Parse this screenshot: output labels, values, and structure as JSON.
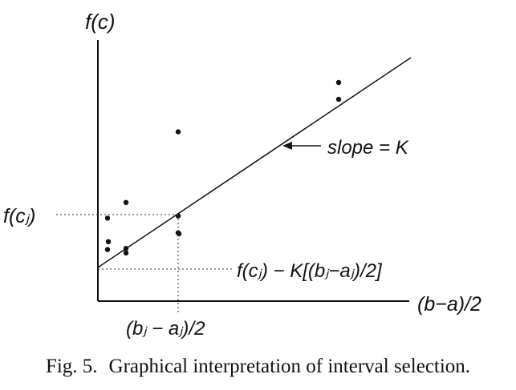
{
  "figure": {
    "y_label": "f(c)",
    "x_label": "(b−a)/2",
    "point_label_y": "f(cⱼ)",
    "intercept_label": "f(cⱼ) − K[(bⱼ−aⱼ)/2]",
    "point_label_x": "(bⱼ − aⱼ)/2",
    "slope_label": "slope = K",
    "dots": [
      {
        "col": 1,
        "level": 0.74
      },
      {
        "col": 1,
        "level": 0.53
      },
      {
        "col": 1,
        "level": 0.46
      },
      {
        "col": 2,
        "level": 0.88
      },
      {
        "col": 2,
        "level": 0.47
      },
      {
        "col": 2,
        "level": 0.43
      },
      {
        "col": 3,
        "level": 1.51
      },
      {
        "col": 3,
        "level": 0.61
      },
      {
        "col": 3,
        "level": 0.76
      },
      {
        "col": 3,
        "level": 0.6
      },
      {
        "col": 4,
        "level": 1.95
      },
      {
        "col": 4,
        "level": 1.8
      }
    ]
  },
  "caption": {
    "fig_number": "Fig. 5.",
    "text": "Graphical interpretation of interval selection."
  }
}
